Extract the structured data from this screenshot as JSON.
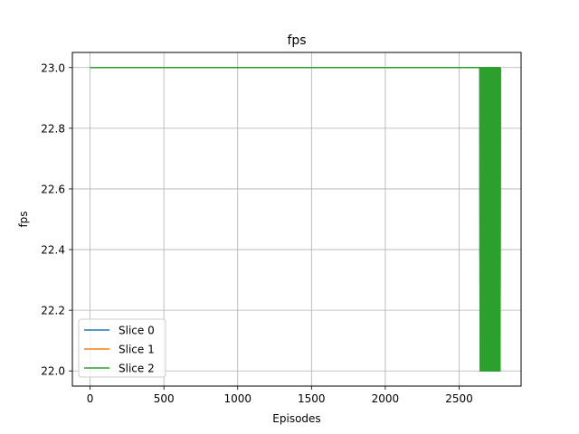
{
  "chart_data": {
    "type": "line",
    "title": "fps",
    "xlabel": "Episodes",
    "ylabel": "fps",
    "xlim": [
      -120,
      2920
    ],
    "ylim": [
      21.95,
      23.05
    ],
    "xticks": [
      0,
      500,
      1000,
      1500,
      2000,
      2500
    ],
    "xtick_labels": [
      "0",
      "500",
      "1000",
      "1500",
      "2000",
      "2500"
    ],
    "yticks": [
      22.0,
      22.2,
      22.4,
      22.6,
      22.8,
      23.0
    ],
    "ytick_labels": [
      "22.0",
      "22.2",
      "22.4",
      "22.6",
      "22.8",
      "23.0"
    ],
    "grid": true,
    "legend_position": "lower-left",
    "series": [
      {
        "name": "Slice 0",
        "color": "#1f77b4",
        "x": [
          0,
          2640
        ],
        "y": [
          23.0,
          23.0
        ],
        "oscillation": {
          "x_start": 2640,
          "x_end": 2780,
          "low": 22.0,
          "high": 23.0
        }
      },
      {
        "name": "Slice 1",
        "color": "#ff7f0e",
        "x": [
          0,
          2640
        ],
        "y": [
          23.0,
          23.0
        ],
        "oscillation": {
          "x_start": 2640,
          "x_end": 2780,
          "low": 22.0,
          "high": 23.0
        }
      },
      {
        "name": "Slice 2",
        "color": "#2ca02c",
        "x": [
          0,
          2640
        ],
        "y": [
          23.0,
          23.0
        ],
        "oscillation": {
          "x_start": 2640,
          "x_end": 2780,
          "low": 22.0,
          "high": 23.0
        }
      }
    ]
  }
}
